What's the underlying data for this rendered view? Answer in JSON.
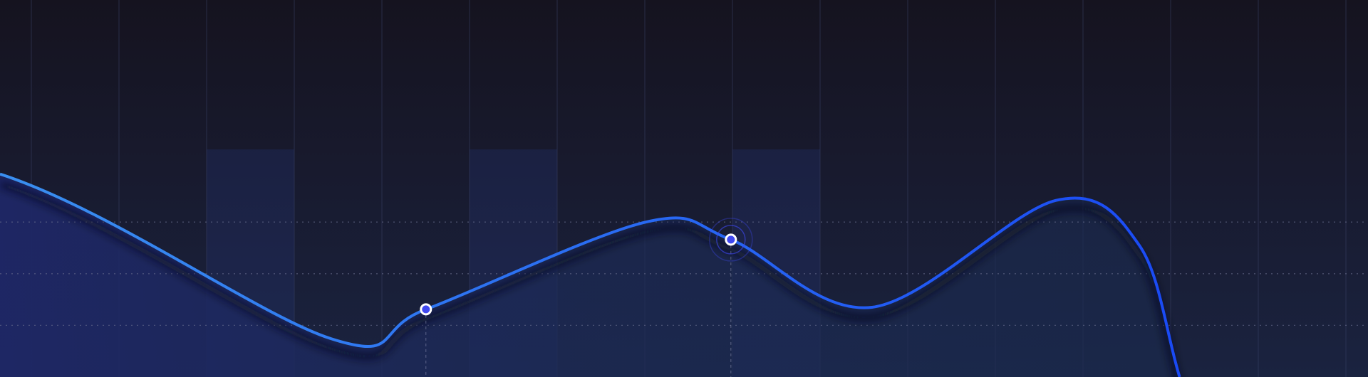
{
  "chart_data": {
    "type": "area",
    "title": "",
    "xlabel": "",
    "ylabel": "",
    "xlim": [
      0,
      15.6
    ],
    "ylim": [
      0,
      7.3
    ],
    "grid": {
      "vertical": true,
      "horizontal_dotted": [
        1,
        2,
        3
      ]
    },
    "highlighted_columns": [
      3,
      6,
      9
    ],
    "series": [
      {
        "x": [
          0,
          3.78,
          4.86,
          7.37,
          8.34,
          9.95,
          12.05,
          13.0,
          13.46
        ],
        "y": [
          3.93,
          0.74,
          1.31,
          3.0,
          2.66,
          1.35,
          3.42,
          2.55,
          0
        ]
      }
    ],
    "markers": [
      {
        "x": 4.86,
        "y": 1.31,
        "style": "dot"
      },
      {
        "x": 8.34,
        "y": 2.66,
        "style": "active-pulse"
      }
    ],
    "colors": {
      "line_start": "#3a8ff0",
      "line_end": "#1a4af5",
      "marker_fill": "#4048f0",
      "marker_ring": "#ffffff",
      "area": "#1e2a6a"
    }
  }
}
